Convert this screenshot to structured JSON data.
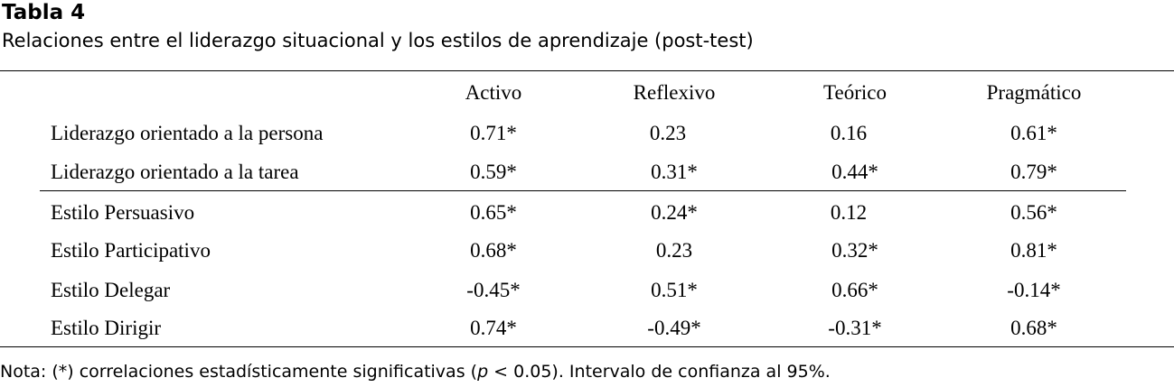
{
  "table": {
    "label": "Tabla 4",
    "title": "Relaciones entre el liderazgo situacional y los estilos de aprendizaje (post-test)",
    "columns": [
      "Activo",
      "Reflexivo",
      "Teórico",
      "Pragmático"
    ],
    "rows": [
      {
        "label": "Liderazgo orientado a la persona",
        "values": [
          "0.71*",
          "0.23",
          "0.16",
          "0.61*"
        ]
      },
      {
        "label": "Liderazgo orientado a la tarea",
        "values": [
          "0.59*",
          "0.31*",
          "0.44*",
          "0.79*"
        ]
      },
      {
        "label": "Estilo Persuasivo",
        "values": [
          "0.65*",
          "0.24*",
          "0.12",
          "0.56*"
        ]
      },
      {
        "label": "Estilo Participativo",
        "values": [
          "0.68*",
          "0.23",
          "0.32*",
          "0.81*"
        ]
      },
      {
        "label": "Estilo Delegar",
        "values": [
          "-0.45*",
          "0.51*",
          "0.66*",
          "-0.14*"
        ]
      },
      {
        "label": "Estilo Dirigir",
        "values": [
          "0.74*",
          "-0.49*",
          "-0.31*",
          "0.68*"
        ]
      }
    ]
  },
  "note": {
    "prefix": "Nota: (*) correlaciones estadísticamente significativas (",
    "p_symbol": "p",
    "suffix": " < 0.05). Intervalo de confianza al 95%."
  }
}
